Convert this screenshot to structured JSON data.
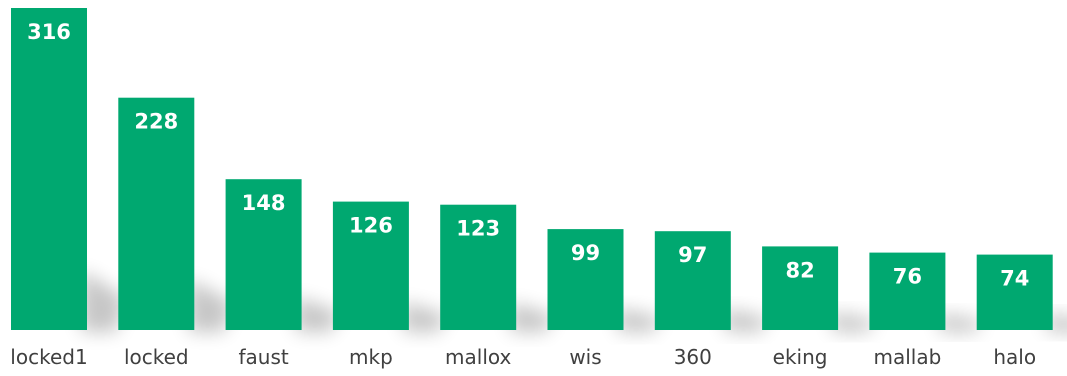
{
  "chart_data": {
    "type": "bar",
    "categories": [
      "locked1",
      "locked",
      "faust",
      "mkp",
      "mallox",
      "wis",
      "360",
      "eking",
      "mallab",
      "halo"
    ],
    "values": [
      316,
      228,
      148,
      126,
      123,
      99,
      97,
      82,
      76,
      74
    ],
    "title": "",
    "xlabel": "",
    "ylabel": "",
    "ylim": [
      0,
      316
    ],
    "grid": false,
    "legend": "none",
    "bar_color": "#00a870",
    "label_color": "#ffffff",
    "category_color": "#404040"
  }
}
